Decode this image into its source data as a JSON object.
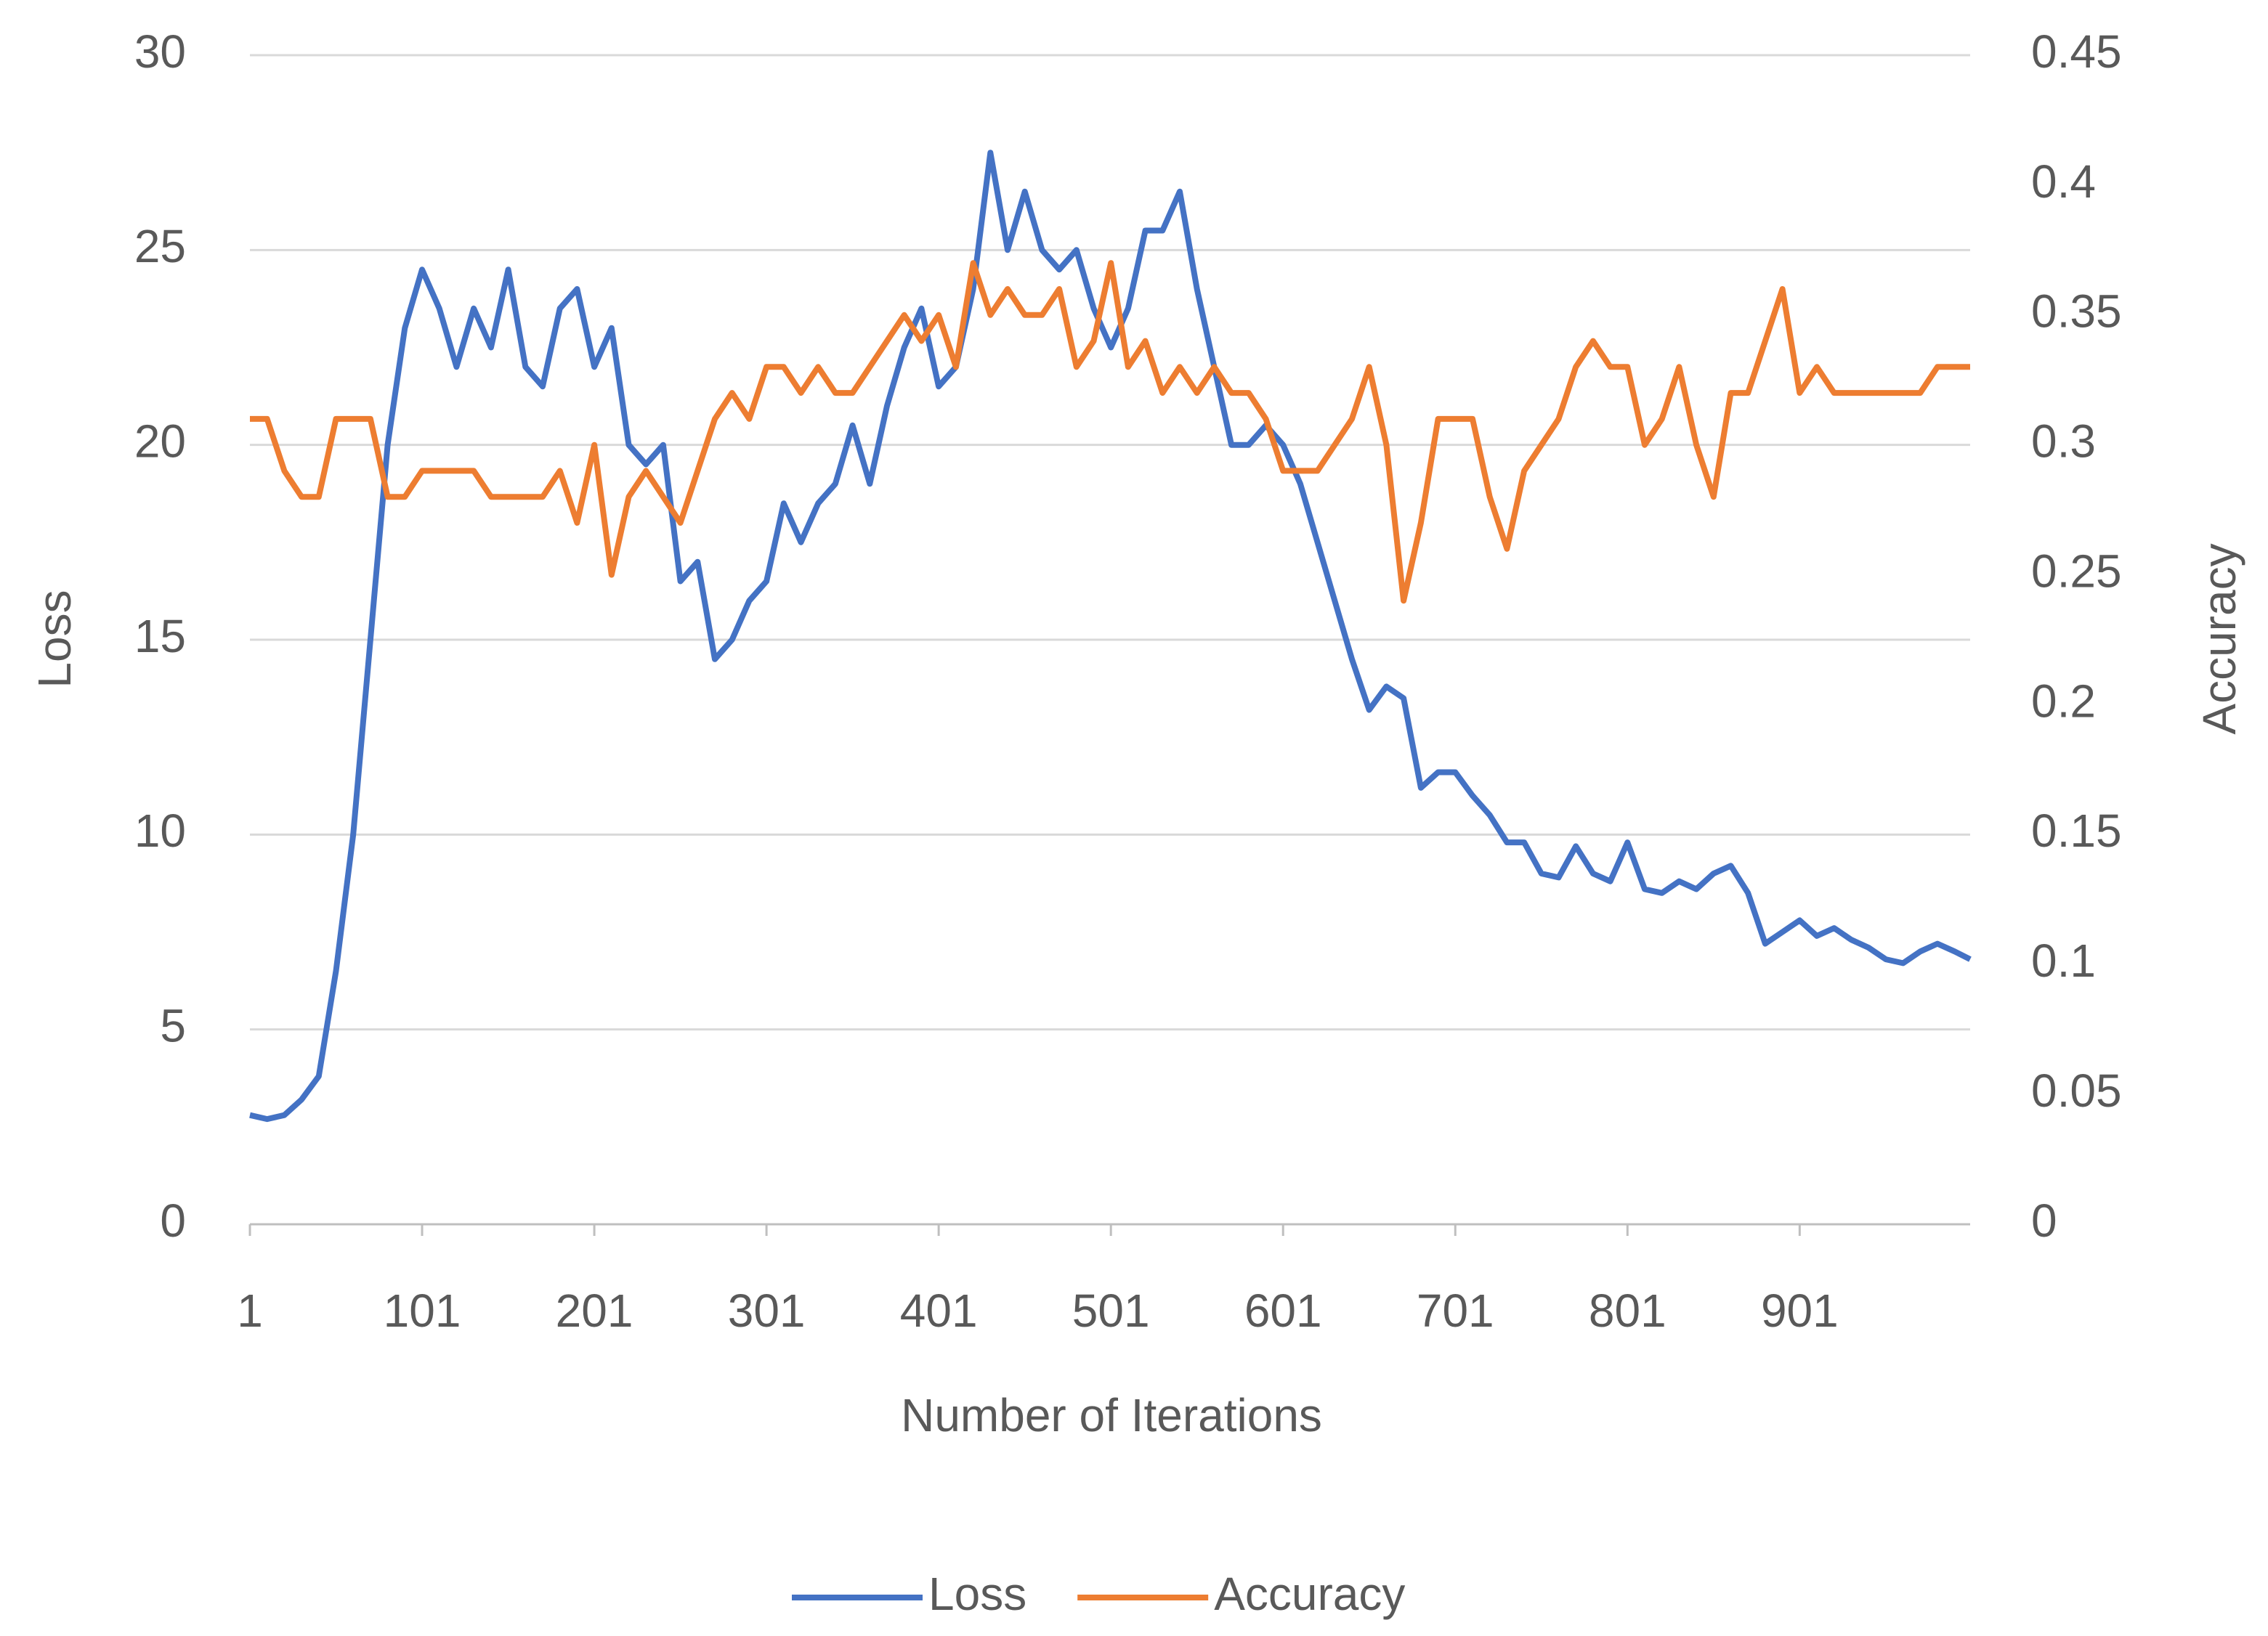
{
  "chart_data": {
    "type": "line",
    "x_label": "Number of Iterations",
    "y_label": "Loss",
    "y2_label": "Accuracy",
    "x": [
      1,
      11,
      21,
      31,
      41,
      51,
      61,
      71,
      81,
      91,
      101,
      111,
      121,
      131,
      141,
      151,
      161,
      171,
      181,
      191,
      201,
      211,
      221,
      231,
      241,
      251,
      261,
      271,
      281,
      291,
      301,
      311,
      321,
      331,
      341,
      351,
      361,
      371,
      381,
      391,
      401,
      411,
      421,
      431,
      441,
      451,
      461,
      471,
      481,
      491,
      501,
      511,
      521,
      531,
      541,
      551,
      561,
      571,
      581,
      591,
      601,
      611,
      621,
      631,
      641,
      651,
      661,
      671,
      681,
      691,
      701,
      711,
      721,
      731,
      741,
      751,
      761,
      771,
      781,
      791,
      801,
      811,
      821,
      831,
      841,
      851,
      861,
      871,
      881,
      891,
      901,
      911,
      921,
      931,
      941,
      951,
      961,
      971,
      981,
      991,
      1000
    ],
    "series": [
      {
        "name": "Loss",
        "color": "#4472c4",
        "values": [
          2.8,
          2.7,
          2.8,
          3.2,
          3.8,
          6.5,
          10,
          15,
          20,
          23,
          24.5,
          23.5,
          22,
          23.5,
          22.5,
          24.5,
          22,
          21.5,
          23.5,
          24,
          22,
          23,
          20,
          19.5,
          20,
          16.5,
          17,
          14.5,
          15,
          16,
          16.5,
          18.5,
          17.5,
          18.5,
          19,
          20.5,
          19,
          21,
          22.5,
          23.5,
          21.5,
          22,
          24,
          27.5,
          25,
          26.5,
          25,
          24.5,
          25,
          23.5,
          22.5,
          23.5,
          25.5,
          25.5,
          26.5,
          24,
          22,
          20,
          20,
          20.5,
          20,
          19,
          17.5,
          16,
          14.5,
          13.2,
          13.8,
          13.5,
          11.2,
          11.6,
          11.6,
          11,
          10.5,
          9.8,
          9.8,
          9,
          8.9,
          9.7,
          9,
          8.8,
          9.8,
          8.6,
          8.5,
          8.8,
          8.6,
          9,
          9.2,
          8.5,
          7.2,
          7.5,
          7.8,
          7.4,
          7.6,
          7.3,
          7.1,
          6.8,
          6.7,
          7,
          7.2,
          7,
          6.8
        ]
      },
      {
        "name": "Accuracy",
        "color": "#ed7d31",
        "axis": "y2",
        "values": [
          0.31,
          0.31,
          0.29,
          0.28,
          0.28,
          0.31,
          0.31,
          0.31,
          0.28,
          0.28,
          0.29,
          0.29,
          0.29,
          0.29,
          0.28,
          0.28,
          0.28,
          0.28,
          0.29,
          0.27,
          0.3,
          0.25,
          0.28,
          0.29,
          0.28,
          0.27,
          0.29,
          0.31,
          0.32,
          0.31,
          0.33,
          0.33,
          0.32,
          0.33,
          0.32,
          0.32,
          0.33,
          0.34,
          0.35,
          0.34,
          0.35,
          0.33,
          0.37,
          0.35,
          0.36,
          0.35,
          0.35,
          0.36,
          0.33,
          0.34,
          0.37,
          0.33,
          0.34,
          0.32,
          0.33,
          0.32,
          0.33,
          0.32,
          0.32,
          0.31,
          0.29,
          0.29,
          0.29,
          0.3,
          0.31,
          0.33,
          0.3,
          0.24,
          0.27,
          0.31,
          0.31,
          0.31,
          0.28,
          0.26,
          0.29,
          0.3,
          0.31,
          0.33,
          0.34,
          0.33,
          0.33,
          0.3,
          0.31,
          0.33,
          0.3,
          0.28,
          0.32,
          0.32,
          0.34,
          0.36,
          0.32,
          0.33,
          0.32,
          0.32,
          0.32,
          0.32,
          0.32,
          0.32,
          0.33,
          0.33,
          0.33
        ]
      }
    ],
    "xlim": [
      1,
      1000
    ],
    "xticks": [
      1,
      101,
      201,
      301,
      401,
      501,
      601,
      701,
      801,
      901
    ],
    "ylim": [
      0,
      30
    ],
    "yticks": [
      0,
      5,
      10,
      15,
      20,
      25,
      30
    ],
    "y2lim": [
      0,
      0.45
    ],
    "y2ticks": [
      0,
      0.05,
      0.1,
      0.15,
      0.2,
      0.25,
      0.3,
      0.35,
      0.4,
      0.45
    ],
    "grid": true,
    "legend": "bottom"
  }
}
